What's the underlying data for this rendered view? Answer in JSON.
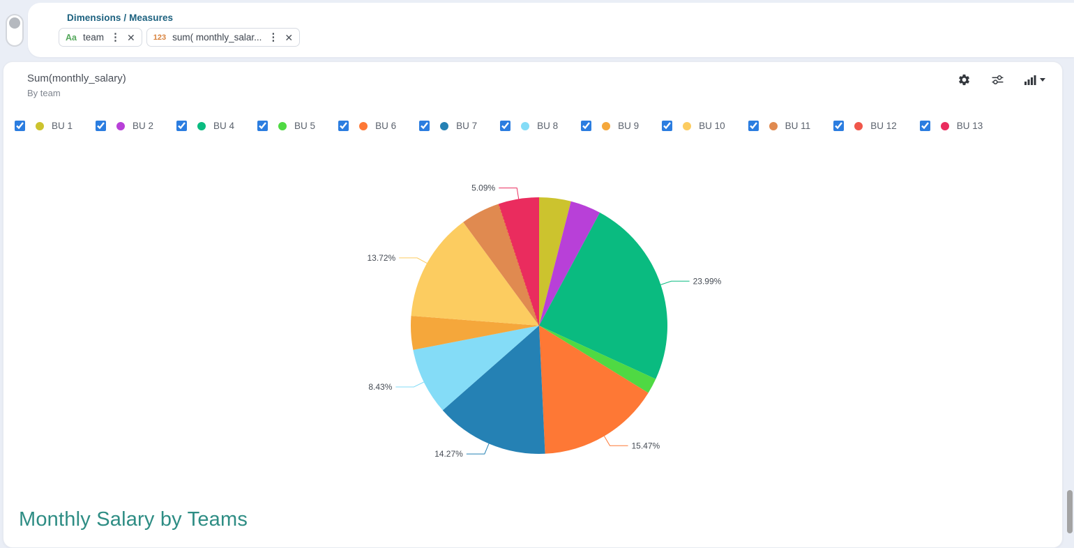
{
  "panel": {
    "title": "Dimensions / Measures",
    "chips": [
      {
        "type_badge": "Aa",
        "label": "team",
        "menu_icon": "vertical-dots",
        "close_icon": "x"
      },
      {
        "type_badge": "123",
        "label": "sum( monthly_salar...",
        "menu_icon": "vertical-dots",
        "close_icon": "x"
      }
    ]
  },
  "chart_card": {
    "title": "Sum(monthly_salary)",
    "subtitle": "By team",
    "footer_title": "Monthly Salary by Teams",
    "toolbar_icons": [
      "settings-gear",
      "filter-sliders",
      "chart-type-bar-with-caret"
    ]
  },
  "chart_data": {
    "type": "pie",
    "title": "Sum(monthly_salary)",
    "subtitle": "By team",
    "legend_position": "top",
    "legend_style": "checkbox + color dot",
    "start_angle_deg": 90,
    "direction": "clockwise",
    "series": [
      {
        "name": "BU 1",
        "value": 4.0,
        "color": "#ccc32e",
        "checked": true,
        "pct_label": null
      },
      {
        "name": "BU 2",
        "value": 3.85,
        "color": "#b840d8",
        "checked": true,
        "pct_label": null
      },
      {
        "name": "BU 4",
        "value": 23.99,
        "color": "#0abb80",
        "checked": true,
        "pct_label": "23.99%"
      },
      {
        "name": "BU 5",
        "value": 1.95,
        "color": "#4fd943",
        "checked": true,
        "pct_label": null
      },
      {
        "name": "BU 6",
        "value": 15.47,
        "color": "#fe7835",
        "checked": true,
        "pct_label": "15.47%"
      },
      {
        "name": "BU 7",
        "value": 14.27,
        "color": "#2581b4",
        "checked": true,
        "pct_label": "14.27%"
      },
      {
        "name": "BU 8",
        "value": 8.43,
        "color": "#84dcf7",
        "checked": true,
        "pct_label": "8.43%"
      },
      {
        "name": "BU 9",
        "value": 4.25,
        "color": "#f5a73b",
        "checked": true,
        "pct_label": null
      },
      {
        "name": "BU 10",
        "value": 13.72,
        "color": "#fccc60",
        "checked": true,
        "pct_label": "13.72%"
      },
      {
        "name": "BU 11",
        "value": 4.95,
        "color": "#e08a50",
        "checked": true,
        "pct_label": null
      },
      {
        "name": "BU 12",
        "value": 0.03,
        "color": "#f0564a",
        "checked": true,
        "pct_label": null
      },
      {
        "name": "BU 13",
        "value": 5.09,
        "color": "#ea2c5e",
        "checked": true,
        "pct_label": "5.09%"
      }
    ]
  },
  "colors": {
    "page_background": "#eaeef6",
    "card_background": "#ffffff",
    "checkbox_accent": "#2b7de0",
    "panel_title": "#1c617f",
    "footer_title": "#2e8d84",
    "pie_label_text": "#454b54"
  }
}
